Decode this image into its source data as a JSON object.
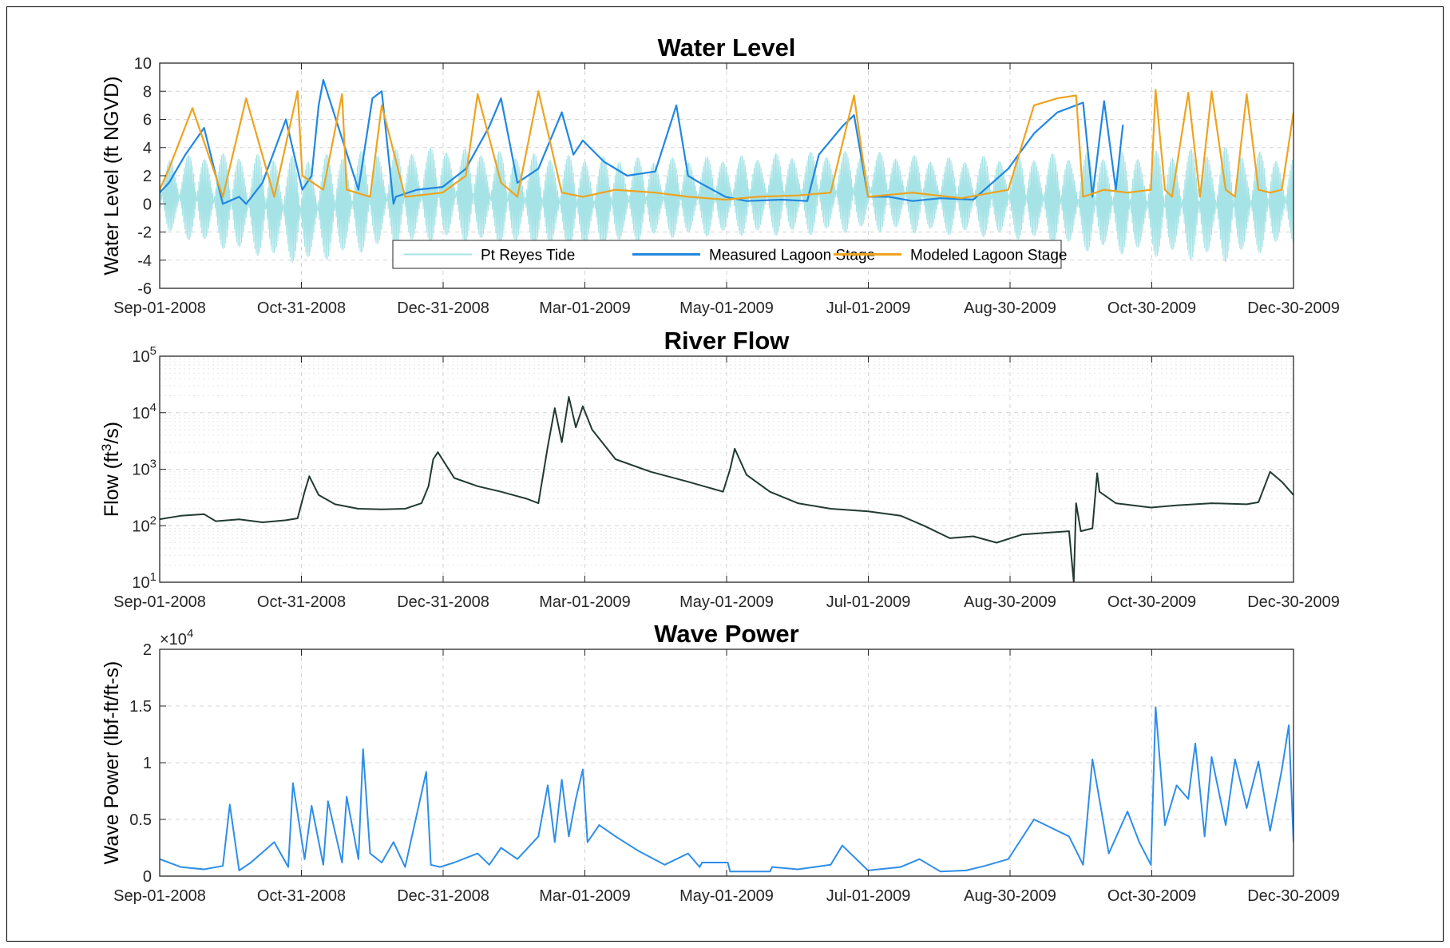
{
  "colors": {
    "tide": "#a6e3e6",
    "measured": "#2187e0",
    "modeled": "#eea31f",
    "flow": "#213a33",
    "wave": "#2e8ee8",
    "grid": "#d4d4d4"
  },
  "chart_data": [
    {
      "id": "water-level",
      "type": "line",
      "title": "Water Level",
      "xlabel": "",
      "ylabel": "Water Level (ft NGVD)",
      "x_ticks": [
        "Sep-01-2008",
        "Oct-31-2008",
        "Dec-31-2008",
        "Mar-01-2009",
        "May-01-2009",
        "Jul-01-2009",
        "Aug-30-2009",
        "Oct-30-2009",
        "Dec-30-2009"
      ],
      "y_ticks": [
        "10",
        "8",
        "6",
        "4",
        "2",
        "0",
        "-2",
        "-4",
        "-6"
      ],
      "ylim": [
        -6,
        10
      ],
      "xlim": [
        "2008-09-01",
        "2009-12-30"
      ],
      "grid": true,
      "legend_position": "bottom-center",
      "series": [
        {
          "name": "Pt Reyes Tide",
          "color_key": "tide",
          "style": "tidal envelope",
          "x": [
            "2008-09-01",
            "2008-10-01",
            "2008-11-01",
            "2008-12-01",
            "2009-01-01",
            "2009-02-01",
            "2009-03-01",
            "2009-04-01",
            "2009-05-01",
            "2009-06-01",
            "2009-07-01",
            "2009-08-01",
            "2009-09-01",
            "2009-10-01",
            "2009-11-01",
            "2009-12-01",
            "2009-12-30"
          ],
          "high": [
            3.5,
            3.8,
            3.6,
            4.0,
            4.2,
            3.8,
            3.6,
            3.4,
            3.5,
            3.8,
            3.9,
            3.4,
            3.6,
            3.8,
            3.9,
            4.2,
            3.5
          ],
          "low": [
            -2.2,
            -3.5,
            -4.5,
            -3.5,
            -2.8,
            -3.2,
            -3.6,
            -2.6,
            -2.4,
            -2.4,
            -2.1,
            -2.3,
            -2.6,
            -3.5,
            -3.9,
            -4.3,
            -3.0
          ]
        },
        {
          "name": "Measured Lagoon Stage",
          "color_key": "measured",
          "style": "line",
          "x": [
            "2008-09-01",
            "2008-09-05",
            "2008-09-12",
            "2008-09-20",
            "2008-09-28",
            "2008-10-05",
            "2008-10-08",
            "2008-10-15",
            "2008-10-25",
            "2008-11-01",
            "2008-11-05",
            "2008-11-08",
            "2008-11-10",
            "2008-11-25",
            "2008-12-01",
            "2008-12-05",
            "2008-12-10",
            "2008-12-11",
            "2008-12-20",
            "2008-12-31",
            "2009-01-10",
            "2009-01-20",
            "2009-01-25",
            "2009-02-01",
            "2009-02-10",
            "2009-02-20",
            "2009-02-25",
            "2009-03-01",
            "2009-03-10",
            "2009-03-20",
            "2009-04-01",
            "2009-04-10",
            "2009-04-15",
            "2009-04-20",
            "2009-05-01",
            "2009-05-10",
            "2009-05-25",
            "2009-06-05",
            "2009-06-10",
            "2009-06-15",
            "2009-06-20",
            "2009-06-25",
            "2009-07-01",
            "2009-07-10",
            "2009-07-20",
            "2009-08-01",
            "2009-08-15",
            "2009-08-30",
            "2009-09-10",
            "2009-09-20",
            "2009-09-28",
            "2009-10-01",
            "2009-10-05",
            "2009-10-10",
            "2009-10-15",
            "2009-10-18"
          ],
          "y": [
            0.8,
            1.5,
            3.5,
            5.4,
            0.0,
            0.5,
            0.0,
            1.5,
            6.0,
            1.0,
            2.0,
            7.0,
            8.8,
            1.0,
            7.5,
            8.0,
            0.0,
            0.5,
            1.0,
            1.2,
            2.5,
            5.5,
            7.5,
            1.5,
            2.5,
            6.5,
            3.5,
            4.5,
            3.0,
            2.0,
            2.3,
            7.0,
            2.0,
            1.5,
            0.5,
            0.2,
            0.3,
            0.2,
            3.5,
            4.5,
            5.5,
            6.3,
            0.5,
            0.5,
            0.2,
            0.4,
            0.3,
            2.5,
            5.0,
            6.5,
            7.0,
            7.2,
            0.5,
            7.3,
            1.0,
            5.6
          ]
        },
        {
          "name": "Modeled Lagoon Stage",
          "color_key": "modeled",
          "style": "line",
          "x": [
            "2008-09-01",
            "2008-09-05",
            "2008-09-15",
            "2008-09-28",
            "2008-10-08",
            "2008-10-20",
            "2008-10-30",
            "2008-11-01",
            "2008-11-10",
            "2008-11-18",
            "2008-11-20",
            "2008-11-30",
            "2008-12-05",
            "2008-12-15",
            "2008-12-31",
            "2009-01-10",
            "2009-01-15",
            "2009-01-25",
            "2009-02-01",
            "2009-02-10",
            "2009-02-20",
            "2009-03-01",
            "2009-03-15",
            "2009-04-01",
            "2009-04-15",
            "2009-05-01",
            "2009-05-15",
            "2009-06-01",
            "2009-06-15",
            "2009-06-25",
            "2009-07-01",
            "2009-07-20",
            "2009-08-10",
            "2009-08-30",
            "2009-09-10",
            "2009-09-20",
            "2009-09-28",
            "2009-10-01",
            "2009-10-10",
            "2009-10-20",
            "2009-10-30",
            "2009-11-01",
            "2009-11-05",
            "2009-11-08",
            "2009-11-15",
            "2009-11-20",
            "2009-11-25",
            "2009-12-01",
            "2009-12-05",
            "2009-12-10",
            "2009-12-15",
            "2009-12-20",
            "2009-12-25",
            "2009-12-30"
          ],
          "y": [
            1.0,
            2.5,
            6.8,
            0.5,
            7.5,
            0.5,
            8.0,
            2.0,
            1.0,
            7.8,
            1.0,
            0.5,
            7.0,
            0.5,
            0.8,
            2.0,
            7.8,
            1.5,
            0.5,
            8.0,
            0.8,
            0.5,
            1.0,
            0.8,
            0.5,
            0.3,
            0.5,
            0.6,
            0.8,
            7.7,
            0.5,
            0.8,
            0.4,
            1.0,
            7.0,
            7.5,
            7.7,
            0.5,
            1.0,
            0.8,
            1.0,
            8.1,
            1.0,
            0.5,
            7.9,
            0.5,
            8.0,
            1.0,
            0.5,
            7.8,
            1.0,
            0.8,
            1.0,
            6.5
          ]
        }
      ]
    },
    {
      "id": "river-flow",
      "type": "line",
      "title": "River Flow",
      "xlabel": "",
      "ylabel": "Flow (ft³/s)",
      "x_ticks": [
        "Sep-01-2008",
        "Oct-31-2008",
        "Dec-31-2008",
        "Mar-01-2009",
        "May-01-2009",
        "Jul-01-2009",
        "Aug-30-2009",
        "Oct-30-2009",
        "Dec-30-2009"
      ],
      "y_ticks": [
        "10^5",
        "10^4",
        "10^3",
        "10^2",
        "10^1"
      ],
      "yscale": "log",
      "ylim": [
        10,
        100000
      ],
      "xlim": [
        "2008-09-01",
        "2009-12-30"
      ],
      "grid": true,
      "series": [
        {
          "color_key": "flow",
          "x": [
            "2008-09-01",
            "2008-09-10",
            "2008-09-20",
            "2008-09-25",
            "2008-10-05",
            "2008-10-15",
            "2008-10-25",
            "2008-10-30",
            "2008-11-02",
            "2008-11-04",
            "2008-11-08",
            "2008-11-15",
            "2008-11-25",
            "2008-12-05",
            "2008-12-15",
            "2008-12-22",
            "2008-12-25",
            "2008-12-27",
            "2008-12-29",
            "2009-01-05",
            "2009-01-15",
            "2009-01-25",
            "2009-02-05",
            "2009-02-10",
            "2009-02-14",
            "2009-02-17",
            "2009-02-20",
            "2009-02-23",
            "2009-02-26",
            "2009-03-01",
            "2009-03-05",
            "2009-03-15",
            "2009-03-30",
            "2009-04-15",
            "2009-04-30",
            "2009-05-03",
            "2009-05-05",
            "2009-05-10",
            "2009-05-20",
            "2009-06-01",
            "2009-06-15",
            "2009-07-01",
            "2009-07-15",
            "2009-07-25",
            "2009-08-05",
            "2009-08-15",
            "2009-08-25",
            "2009-09-05",
            "2009-09-15",
            "2009-09-25",
            "2009-09-27",
            "2009-09-28",
            "2009-09-30",
            "2009-10-05",
            "2009-10-07",
            "2009-10-08",
            "2009-10-15",
            "2009-10-30",
            "2009-11-10",
            "2009-11-25",
            "2009-12-10",
            "2009-12-15",
            "2009-12-20",
            "2009-12-25",
            "2009-12-30"
          ],
          "y": [
            130,
            150,
            160,
            120,
            130,
            115,
            125,
            135,
            400,
            750,
            350,
            240,
            200,
            195,
            200,
            250,
            500,
            1500,
            2000,
            700,
            500,
            400,
            300,
            250,
            2500,
            12000,
            3000,
            19000,
            5500,
            13000,
            5000,
            1500,
            900,
            600,
            400,
            1000,
            2300,
            800,
            400,
            250,
            200,
            180,
            150,
            100,
            60,
            65,
            50,
            70,
            75,
            80,
            10,
            250,
            80,
            90,
            850,
            400,
            250,
            210,
            230,
            250,
            240,
            260,
            900,
            600,
            350
          ]
        }
      ]
    },
    {
      "id": "wave-power",
      "type": "line",
      "title": "Wave Power",
      "xlabel": "",
      "ylabel": "Wave Power (lbf-ft/ft-s)",
      "y_multiplier": "×10",
      "y_multiplier_exponent": "4",
      "x_ticks": [
        "Sep-01-2008",
        "Oct-31-2008",
        "Dec-31-2008",
        "Mar-01-2009",
        "May-01-2009",
        "Jul-01-2009",
        "Aug-30-2009",
        "Oct-30-2009",
        "Dec-30-2009"
      ],
      "y_ticks": [
        "2",
        "1.5",
        "1",
        "0.5",
        "0"
      ],
      "ylim": [
        0,
        20000
      ],
      "xlim": [
        "2008-09-01",
        "2009-12-30"
      ],
      "grid": true,
      "series": [
        {
          "color_key": "wave",
          "x": [
            "2008-09-01",
            "2008-09-10",
            "2008-09-20",
            "2008-09-28",
            "2008-10-01",
            "2008-10-05",
            "2008-10-10",
            "2008-10-20",
            "2008-10-26",
            "2008-10-28",
            "2008-11-02",
            "2008-11-05",
            "2008-11-10",
            "2008-11-12",
            "2008-11-18",
            "2008-11-20",
            "2008-11-25",
            "2008-11-27",
            "2008-11-30",
            "2008-12-05",
            "2008-12-10",
            "2008-12-15",
            "2008-12-24",
            "2008-12-26",
            "2008-12-30",
            "2009-01-05",
            "2009-01-15",
            "2009-01-20",
            "2009-01-25",
            "2009-02-01",
            "2009-02-10",
            "2009-02-14",
            "2009-02-17",
            "2009-02-20",
            "2009-02-23",
            "2009-02-26",
            "2009-03-01",
            "2009-03-03",
            "2009-03-08",
            "2009-03-15",
            "2009-03-25",
            "2009-04-05",
            "2009-04-15",
            "2009-04-20",
            "2009-04-21",
            "2009-05-02",
            "2009-05-03",
            "2009-05-20",
            "2009-05-21",
            "2009-06-01",
            "2009-06-15",
            "2009-06-20",
            "2009-07-01",
            "2009-07-15",
            "2009-07-23",
            "2009-08-01",
            "2009-08-12",
            "2009-08-20",
            "2009-08-30",
            "2009-09-10",
            "2009-09-25",
            "2009-10-01",
            "2009-10-05",
            "2009-10-12",
            "2009-10-20",
            "2009-10-25",
            "2009-10-30",
            "2009-11-01",
            "2009-11-05",
            "2009-11-10",
            "2009-11-15",
            "2009-11-18",
            "2009-11-22",
            "2009-11-25",
            "2009-12-01",
            "2009-12-05",
            "2009-12-10",
            "2009-12-15",
            "2009-12-20",
            "2009-12-25",
            "2009-12-28",
            "2009-12-30"
          ],
          "y": [
            1500,
            800,
            600,
            900,
            6300,
            500,
            1200,
            3000,
            800,
            8200,
            1500,
            6200,
            1000,
            6600,
            1200,
            7000,
            1500,
            11200,
            2000,
            1200,
            3000,
            800,
            9200,
            1000,
            800,
            1200,
            2000,
            1000,
            2500,
            1500,
            3500,
            8000,
            3000,
            8500,
            3500,
            6800,
            9400,
            3000,
            4500,
            3500,
            2200,
            1000,
            2000,
            800,
            1200,
            1200,
            400,
            400,
            800,
            600,
            1000,
            2700,
            500,
            800,
            1500,
            400,
            500,
            900,
            1500,
            5000,
            3500,
            1000,
            10300,
            2000,
            5700,
            3000,
            1000,
            14900,
            4500,
            8000,
            6800,
            11700,
            3500,
            10500,
            4500,
            10300,
            6000,
            10100,
            4000,
            9400,
            13300,
            3000
          ]
        }
      ]
    }
  ]
}
